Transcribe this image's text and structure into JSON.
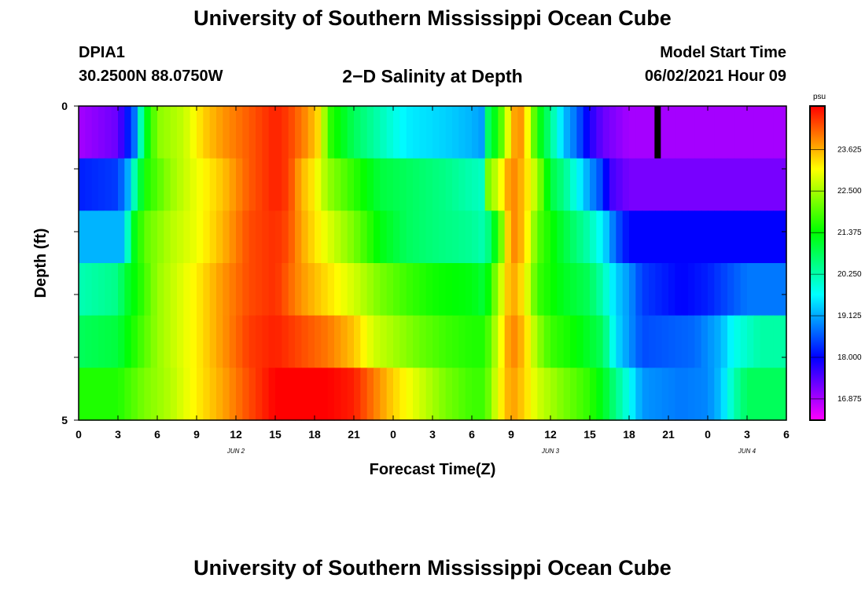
{
  "header": {
    "title": "University of Southern Mississippi Ocean Cube",
    "station": "DPIA1",
    "coords": "30.2500N  88.0750W",
    "plot_title": "2−D Salinity at Depth",
    "start_label": "Model Start Time",
    "start_value": "06/02/2021 Hour 09"
  },
  "footer": {
    "title": "University of Southern Mississippi Ocean Cube"
  },
  "colors": {
    "palette": [
      "#ff00ff",
      "#0000ff",
      "#00ffff",
      "#00ff00",
      "#ffff00",
      "#ff0000"
    ],
    "frame": "#000000"
  },
  "chart_data": {
    "type": "heatmap",
    "title": "2−D Salinity at Depth",
    "xlabel": "Forecast Time(Z)",
    "ylabel": "Depth (ft)",
    "x_tick_labels": [
      "0",
      "3",
      "6",
      "9",
      "12",
      "15",
      "18",
      "21",
      "0",
      "3",
      "6",
      "9",
      "12",
      "15",
      "18",
      "21",
      "0",
      "3",
      "6"
    ],
    "date_labels": [
      {
        "text": "JUN 2",
        "hour": 12
      },
      {
        "text": "JUN 3",
        "hour": 36
      },
      {
        "text": "JUN 4",
        "hour": 51
      }
    ],
    "xlim": [
      0,
      54
    ],
    "ylim": [
      0,
      5
    ],
    "y_tick_labels": [
      "0",
      "5"
    ],
    "colorbar": {
      "unit": "psu",
      "range": [
        16.3,
        24.8
      ],
      "ticks": [
        "16.875",
        "18.000",
        "19.125",
        "20.250",
        "21.375",
        "22.500",
        "23.625"
      ]
    },
    "missing_marker": {
      "hour": 44,
      "depth_band": 0
    },
    "rows": [
      {
        "depth_band": "0-1",
        "points": [
          [
            0,
            16.9
          ],
          [
            3,
            17.3
          ],
          [
            4.3,
            18.8
          ],
          [
            5,
            21
          ],
          [
            6,
            22.3
          ],
          [
            8,
            22.7
          ],
          [
            9.5,
            23.4
          ],
          [
            11,
            23.8
          ],
          [
            13,
            24.2
          ],
          [
            15,
            24.6
          ],
          [
            16,
            24.4
          ],
          [
            17.5,
            23.8
          ],
          [
            18.5,
            23.2
          ],
          [
            19,
            21.8
          ],
          [
            21,
            20.8
          ],
          [
            23,
            20.2
          ],
          [
            25,
            19.6
          ],
          [
            28,
            19.4
          ],
          [
            30,
            19.2
          ],
          [
            31,
            19.0
          ],
          [
            31.2,
            20.7
          ],
          [
            32,
            21.5
          ],
          [
            33,
            23.4
          ],
          [
            33.5,
            24
          ],
          [
            34,
            23.6
          ],
          [
            35,
            21.5
          ],
          [
            36,
            20.5
          ],
          [
            37,
            19.3
          ],
          [
            38,
            18.7
          ],
          [
            39,
            17.8
          ],
          [
            40,
            17.3
          ],
          [
            42,
            16.9
          ],
          [
            54,
            16.9
          ]
        ]
      },
      {
        "depth_band": "1-2",
        "points": [
          [
            0,
            18.2
          ],
          [
            3,
            18.4
          ],
          [
            3.8,
            19.2
          ],
          [
            4.3,
            20.3
          ],
          [
            5,
            21.5
          ],
          [
            7,
            22.4
          ],
          [
            9,
            23
          ],
          [
            11,
            23.5
          ],
          [
            13,
            24.2
          ],
          [
            15,
            24.6
          ],
          [
            16,
            24.4
          ],
          [
            17,
            23.6
          ],
          [
            18,
            23.2
          ],
          [
            19,
            22.4
          ],
          [
            21,
            21.7
          ],
          [
            23,
            21
          ],
          [
            25,
            20.8
          ],
          [
            28,
            20.5
          ],
          [
            30.8,
            20.1
          ],
          [
            31,
            22
          ],
          [
            32,
            22.8
          ],
          [
            33,
            24
          ],
          [
            34,
            23.5
          ],
          [
            35,
            22.5
          ],
          [
            36,
            21
          ],
          [
            37,
            20.5
          ],
          [
            38,
            19.8
          ],
          [
            39,
            19
          ],
          [
            40,
            18.4
          ],
          [
            40.5,
            17.6
          ],
          [
            42,
            17.2
          ],
          [
            54,
            17.2
          ]
        ]
      },
      {
        "depth_band": "2-3",
        "points": [
          [
            0,
            19.2
          ],
          [
            3.5,
            19.2
          ],
          [
            4,
            21
          ],
          [
            5,
            22
          ],
          [
            7,
            22.6
          ],
          [
            9,
            23
          ],
          [
            11,
            23.6
          ],
          [
            13,
            24.3
          ],
          [
            15,
            24.5
          ],
          [
            16,
            24.3
          ],
          [
            17,
            23.7
          ],
          [
            19,
            22.9
          ],
          [
            21,
            22.2
          ],
          [
            23,
            21.3
          ],
          [
            25,
            20.8
          ],
          [
            27,
            20.6
          ],
          [
            30,
            20.4
          ],
          [
            31,
            20.2
          ],
          [
            32,
            21.6
          ],
          [
            33,
            24
          ],
          [
            34,
            23.5
          ],
          [
            35,
            22
          ],
          [
            37,
            21
          ],
          [
            38,
            20.6
          ],
          [
            39,
            20.2
          ],
          [
            40,
            19.6
          ],
          [
            41,
            18.6
          ],
          [
            42,
            18
          ],
          [
            54,
            18
          ]
        ]
      },
      {
        "depth_band": "3-4",
        "points": [
          [
            0,
            20.2
          ],
          [
            3,
            20.5
          ],
          [
            3.5,
            21
          ],
          [
            4.5,
            21.5
          ],
          [
            6,
            22.4
          ],
          [
            9,
            23.2
          ],
          [
            11,
            23.8
          ],
          [
            13,
            24.3
          ],
          [
            15,
            24.5
          ],
          [
            17,
            23.8
          ],
          [
            19,
            23.3
          ],
          [
            21,
            22.8
          ],
          [
            23,
            22.2
          ],
          [
            25,
            21.8
          ],
          [
            27,
            21.5
          ],
          [
            30,
            21.3
          ],
          [
            31,
            21
          ],
          [
            32,
            22.5
          ],
          [
            33,
            23.8
          ],
          [
            34,
            23.2
          ],
          [
            35,
            21.8
          ],
          [
            37,
            21.2
          ],
          [
            38,
            21
          ],
          [
            39,
            20.8
          ],
          [
            40,
            20.2
          ],
          [
            41,
            19.4
          ],
          [
            42,
            19
          ],
          [
            43,
            18.4
          ],
          [
            46,
            18
          ],
          [
            48,
            18.2
          ],
          [
            51,
            18.8
          ],
          [
            54,
            18.8
          ]
        ]
      },
      {
        "depth_band": "4-5",
        "points": [
          [
            0,
            20.8
          ],
          [
            3,
            21
          ],
          [
            4,
            21.5
          ],
          [
            6,
            22.4
          ],
          [
            9,
            23.2
          ],
          [
            11,
            23.8
          ],
          [
            13,
            24.4
          ],
          [
            15,
            24.6
          ],
          [
            17,
            24.3
          ],
          [
            19,
            24
          ],
          [
            21,
            23.5
          ],
          [
            22.5,
            22.8
          ],
          [
            24,
            22.5
          ],
          [
            26,
            22.1
          ],
          [
            28,
            21.8
          ],
          [
            30,
            21.6
          ],
          [
            31,
            21.6
          ],
          [
            32,
            22.8
          ],
          [
            33,
            24
          ],
          [
            34,
            23.5
          ],
          [
            35,
            22.4
          ],
          [
            36,
            21.8
          ],
          [
            38,
            21.4
          ],
          [
            39,
            21.1
          ],
          [
            40,
            20.8
          ],
          [
            41,
            19.5
          ],
          [
            42,
            19
          ],
          [
            43,
            18.5
          ],
          [
            47,
            18.7
          ],
          [
            49,
            19.2
          ],
          [
            50,
            19.8
          ],
          [
            52,
            20.3
          ],
          [
            54,
            20.3
          ]
        ]
      },
      {
        "depth_band": "5",
        "points": [
          [
            0,
            21.6
          ],
          [
            3,
            21.6
          ],
          [
            5,
            22.2
          ],
          [
            7,
            22.6
          ],
          [
            9,
            23.2
          ],
          [
            11,
            23.7
          ],
          [
            13,
            24.3
          ],
          [
            15,
            24.8
          ],
          [
            17,
            24.8
          ],
          [
            19,
            24.8
          ],
          [
            21,
            24.6
          ],
          [
            22.5,
            24
          ],
          [
            24,
            23.4
          ],
          [
            26,
            22.8
          ],
          [
            28,
            22.2
          ],
          [
            30,
            21.8
          ],
          [
            31,
            21.8
          ],
          [
            32,
            23
          ],
          [
            33,
            23.8
          ],
          [
            34,
            23.4
          ],
          [
            35,
            22.8
          ],
          [
            37,
            22.2
          ],
          [
            39,
            21.7
          ],
          [
            40,
            21.2
          ],
          [
            42,
            19.8
          ],
          [
            43,
            19
          ],
          [
            46,
            18.8
          ],
          [
            48,
            18.9
          ],
          [
            49,
            19.3
          ],
          [
            50,
            20.2
          ],
          [
            51,
            20.8
          ],
          [
            54,
            20.8
          ]
        ]
      }
    ]
  }
}
